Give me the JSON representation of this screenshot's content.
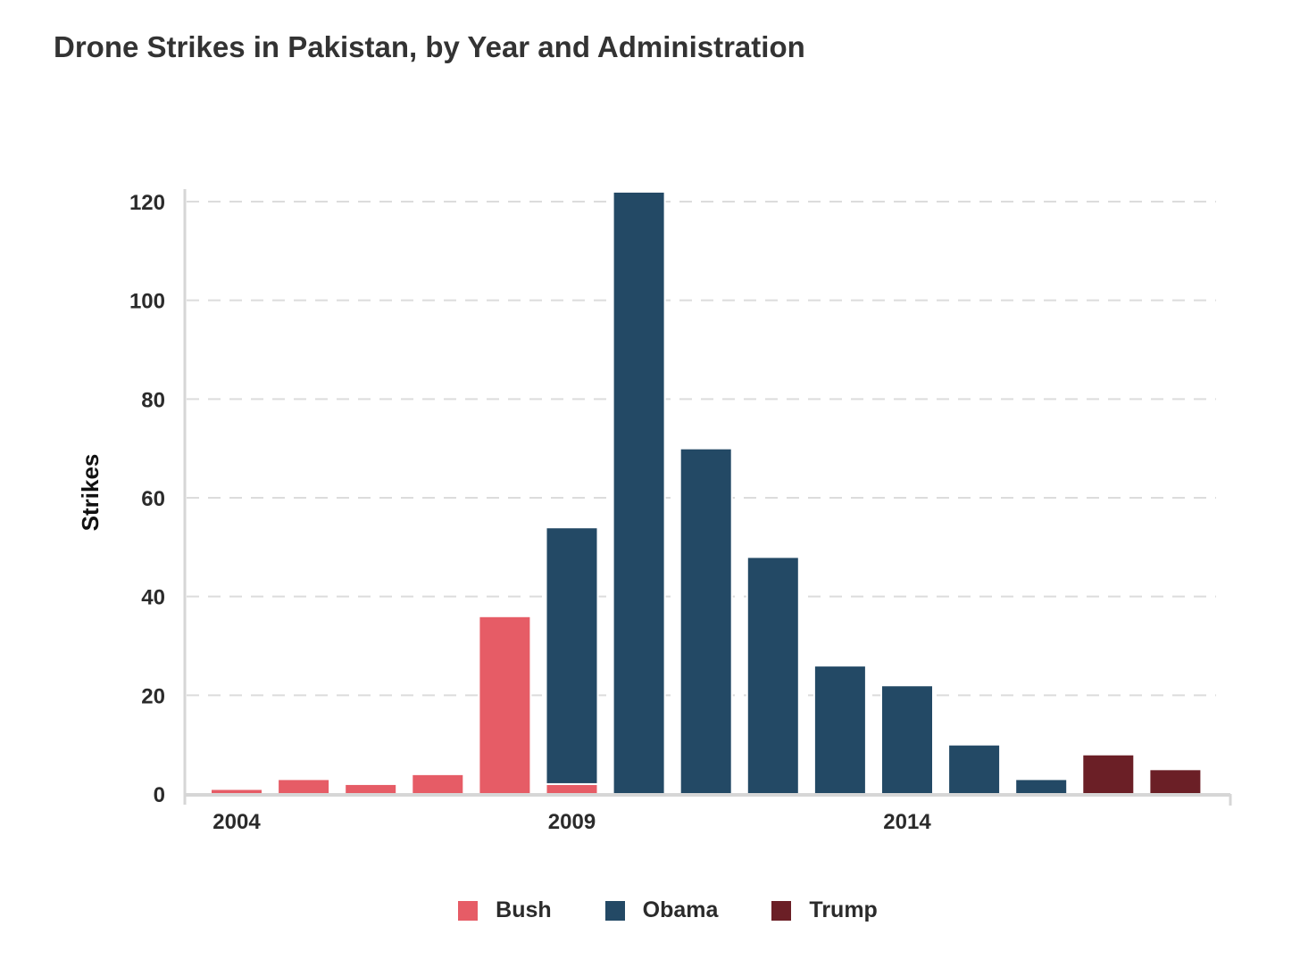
{
  "chart_data": {
    "type": "bar",
    "stacked": true,
    "title": "Drone Strikes in Pakistan, by Year and Administration",
    "xlabel": "",
    "ylabel": "Strikes",
    "ylim": [
      0,
      120
    ],
    "yticks": [
      0,
      20,
      40,
      60,
      80,
      100,
      120
    ],
    "xtick_labels": [
      "2004",
      "2009",
      "2014"
    ],
    "grid": "horizontal dashed",
    "legend_position": "bottom",
    "x": [
      2004,
      2005,
      2006,
      2007,
      2008,
      2009,
      2010,
      2011,
      2012,
      2013,
      2014,
      2015,
      2016,
      2017,
      2018
    ],
    "series": [
      {
        "name": "Bush",
        "color": "#e65c66",
        "values": [
          1,
          3,
          2,
          4,
          36,
          2,
          0,
          0,
          0,
          0,
          0,
          0,
          0,
          0,
          0
        ]
      },
      {
        "name": "Obama",
        "color": "#234965",
        "values": [
          0,
          0,
          0,
          0,
          0,
          52,
          122,
          70,
          48,
          26,
          22,
          10,
          3,
          0,
          0
        ]
      },
      {
        "name": "Trump",
        "color": "#6b1f26",
        "values": [
          0,
          0,
          0,
          0,
          0,
          0,
          0,
          0,
          0,
          0,
          0,
          0,
          0,
          8,
          5
        ]
      }
    ]
  }
}
